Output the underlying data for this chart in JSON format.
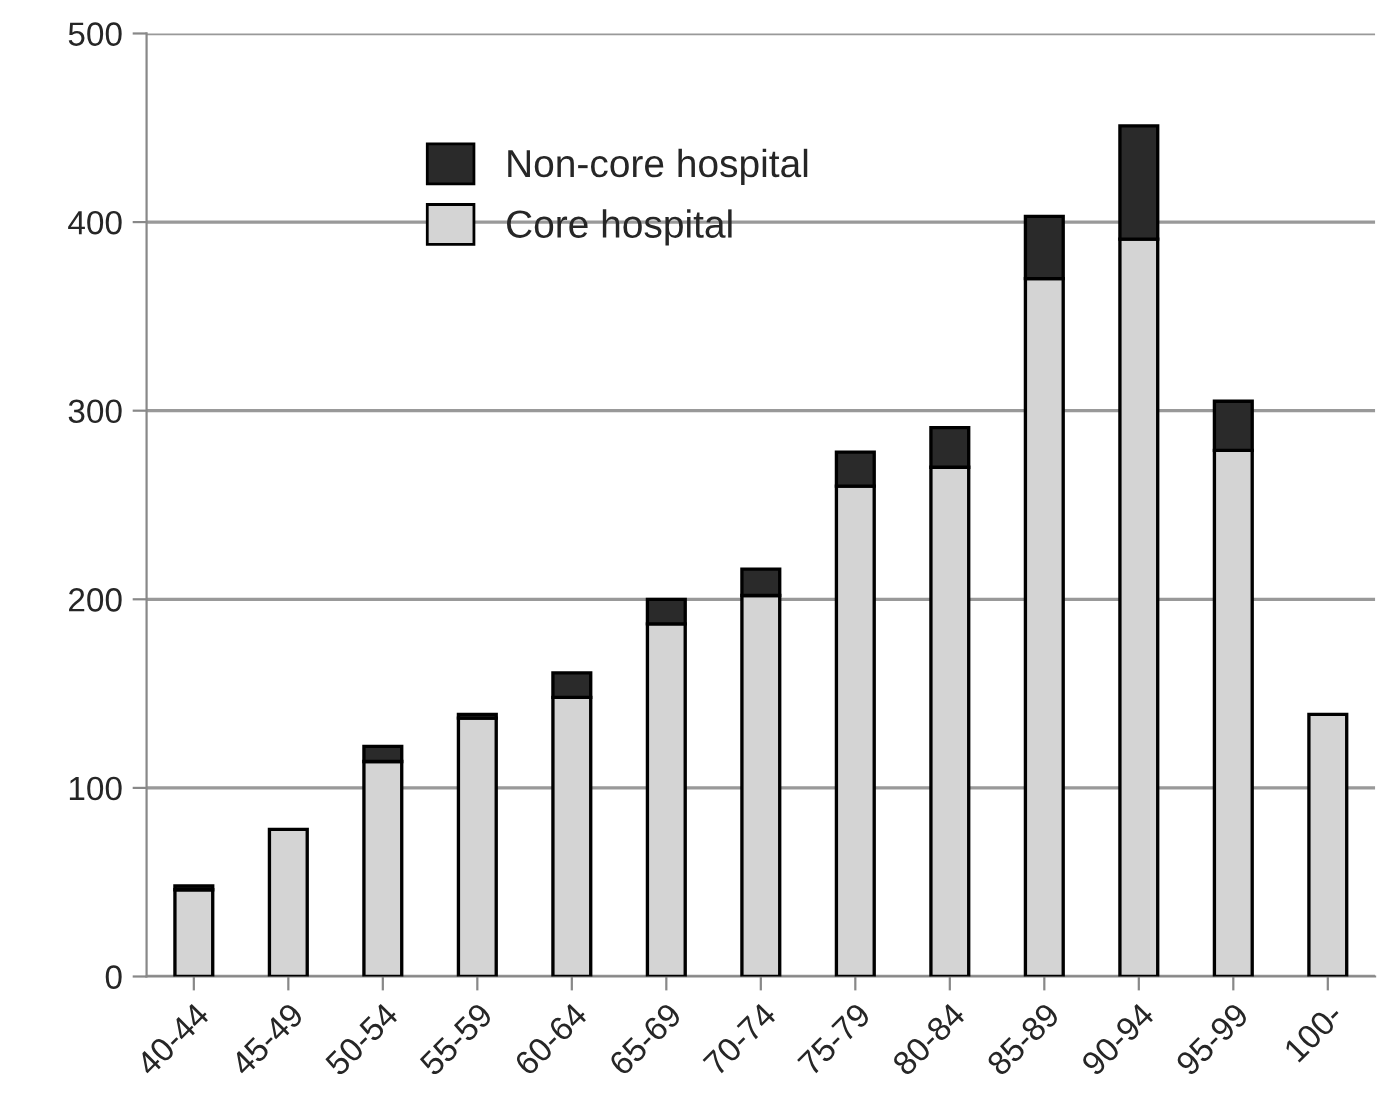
{
  "chart_data": {
    "type": "bar",
    "stacked": true,
    "categories": [
      "40-44",
      "45-49",
      "50-54",
      "55-59",
      "60-64",
      "65-69",
      "70-74",
      "75-79",
      "80-84",
      "85-89",
      "90-94",
      "95-99",
      "100-"
    ],
    "series": [
      {
        "name": "Core hospital",
        "color": "#d4d4d4",
        "values": [
          46,
          78,
          114,
          137,
          148,
          187,
          202,
          260,
          270,
          370,
          391,
          279,
          139
        ]
      },
      {
        "name": "Non-core hospital",
        "color": "#2a2a2a",
        "values": [
          2,
          0,
          8,
          2,
          13,
          13,
          14,
          18,
          21,
          33,
          60,
          26,
          0
        ]
      }
    ],
    "ylim": [
      0,
      500
    ],
    "yticks": [
      0,
      100,
      200,
      300,
      400,
      500
    ],
    "grid": "y",
    "legend": "top left"
  }
}
